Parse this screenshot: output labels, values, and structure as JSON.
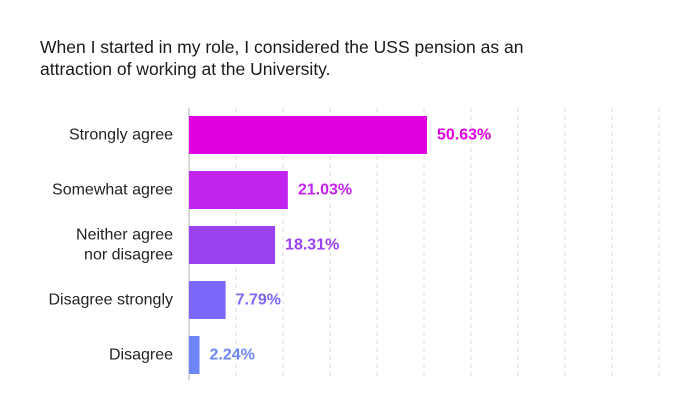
{
  "chart_data": {
    "type": "bar",
    "orientation": "horizontal",
    "title_lines": [
      "When I started in my role, I considered the USS pension as an",
      "attraction of working at the University."
    ],
    "categories": [
      [
        "Strongly agree"
      ],
      [
        "Somewhat agree"
      ],
      [
        "Neither agree",
        "nor disagree"
      ],
      [
        "Disagree strongly"
      ],
      [
        "Disagree"
      ]
    ],
    "values": [
      50.63,
      21.03,
      18.31,
      7.79,
      2.24
    ],
    "value_labels": [
      "50.63%",
      "21.03%",
      "18.31%",
      "7.79%",
      "2.24%"
    ],
    "colors": [
      "#e000e0",
      "#c224ef",
      "#9a42f0",
      "#7b68fb",
      "#6d85f5"
    ],
    "xlim": [
      0,
      100
    ],
    "grid": true
  }
}
